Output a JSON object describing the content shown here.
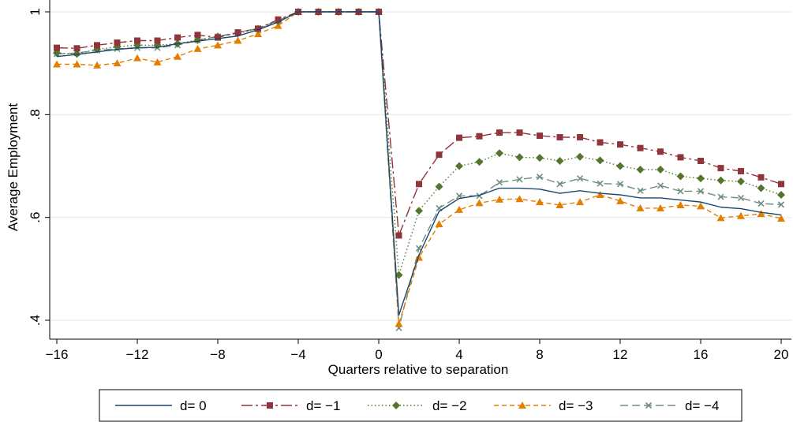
{
  "chart_data": {
    "type": "line",
    "title": "",
    "xlabel": "Quarters relative to separation",
    "ylabel": "Average Employment",
    "xlim": [
      -16,
      20
    ],
    "ylim": [
      0.4,
      1.0
    ],
    "grid": true,
    "legend_position": "bottom",
    "x": [
      -16,
      -15,
      -14,
      -13,
      -12,
      -11,
      -10,
      -9,
      -8,
      -7,
      -6,
      -5,
      -4,
      -3,
      -2,
      -1,
      0,
      1,
      2,
      3,
      4,
      5,
      6,
      7,
      8,
      9,
      10,
      11,
      12,
      13,
      14,
      15,
      16,
      17,
      18,
      19,
      20
    ],
    "x_ticks": [
      {
        "value": -16,
        "label": "−16"
      },
      {
        "value": -12,
        "label": "−12"
      },
      {
        "value": -8,
        "label": "−8"
      },
      {
        "value": -4,
        "label": "−4"
      },
      {
        "value": 0,
        "label": "0"
      },
      {
        "value": 4,
        "label": "4"
      },
      {
        "value": 8,
        "label": "8"
      },
      {
        "value": 12,
        "label": "12"
      },
      {
        "value": 16,
        "label": "16"
      },
      {
        "value": 20,
        "label": "20"
      }
    ],
    "y_ticks": [
      {
        "value": 0.4,
        "label": ".4"
      },
      {
        "value": 0.6,
        "label": ".6"
      },
      {
        "value": 0.8,
        "label": ".8"
      },
      {
        "value": 1.0,
        "label": "1"
      }
    ],
    "series": [
      {
        "name": "d= 0",
        "color": "#1a476f",
        "marker": "none",
        "dash": "solid",
        "values": [
          0.913,
          0.917,
          0.922,
          0.927,
          0.93,
          0.931,
          0.938,
          0.943,
          0.948,
          0.953,
          0.965,
          0.98,
          1,
          1,
          1,
          1,
          1,
          0.41,
          0.527,
          0.612,
          0.637,
          0.643,
          0.657,
          0.657,
          0.655,
          0.647,
          0.652,
          0.647,
          0.644,
          0.638,
          0.638,
          0.634,
          0.63,
          0.62,
          0.617,
          0.61,
          0.605
        ]
      },
      {
        "name": "d= −1",
        "color": "#90353b",
        "marker": "square",
        "dash": "longdashdot",
        "values": [
          0.93,
          0.929,
          0.935,
          0.94,
          0.944,
          0.944,
          0.95,
          0.955,
          0.95,
          0.96,
          0.967,
          0.985,
          1,
          1,
          1,
          1,
          1,
          0.565,
          0.665,
          0.722,
          0.755,
          0.758,
          0.765,
          0.765,
          0.759,
          0.756,
          0.756,
          0.746,
          0.742,
          0.735,
          0.728,
          0.717,
          0.71,
          0.696,
          0.69,
          0.678,
          0.665
        ]
      },
      {
        "name": "d= −2",
        "color": "#55752f",
        "marker": "diamond",
        "dash": "dotted",
        "values": [
          0.92,
          0.918,
          0.927,
          0.932,
          0.935,
          0.935,
          0.938,
          0.945,
          0.952,
          0.958,
          0.967,
          0.982,
          1,
          1,
          1,
          1,
          1,
          0.488,
          0.613,
          0.66,
          0.7,
          0.708,
          0.725,
          0.717,
          0.716,
          0.71,
          0.718,
          0.711,
          0.7,
          0.693,
          0.693,
          0.68,
          0.676,
          0.672,
          0.67,
          0.657,
          0.644
        ]
      },
      {
        "name": "d= −3",
        "color": "#e37e00",
        "marker": "triangle",
        "dash": "dashed",
        "values": [
          0.898,
          0.898,
          0.896,
          0.9,
          0.91,
          0.902,
          0.913,
          0.928,
          0.935,
          0.944,
          0.957,
          0.973,
          1,
          1,
          1,
          1,
          1,
          0.393,
          0.522,
          0.587,
          0.615,
          0.628,
          0.635,
          0.636,
          0.63,
          0.624,
          0.63,
          0.644,
          0.632,
          0.618,
          0.618,
          0.624,
          0.622,
          0.599,
          0.603,
          0.607,
          0.598
        ]
      },
      {
        "name": "d= −4",
        "color": "#6e8e84",
        "marker": "x",
        "dash": "longdash",
        "values": [
          0.918,
          0.92,
          0.925,
          0.928,
          0.93,
          0.93,
          0.935,
          0.945,
          0.952,
          0.96,
          0.968,
          0.983,
          1,
          1,
          1,
          1,
          1,
          0.385,
          0.54,
          0.618,
          0.642,
          0.642,
          0.668,
          0.674,
          0.679,
          0.665,
          0.676,
          0.666,
          0.665,
          0.652,
          0.662,
          0.651,
          0.651,
          0.64,
          0.638,
          0.627,
          0.625
        ]
      }
    ]
  }
}
